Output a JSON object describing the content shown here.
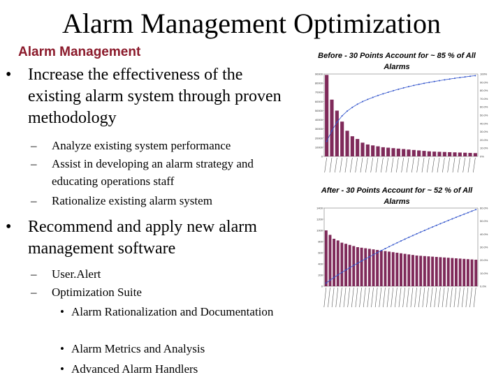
{
  "slide": {
    "title": "Alarm Management Optimization",
    "subheading": "Alarm Management"
  },
  "bullets": {
    "b1": "Increase the effectiveness of the existing alarm system through proven methodology",
    "b1_sub1": "Analyze existing system performance",
    "b1_sub2": "Assist in developing an alarm strategy and educating operations staff",
    "b1_sub3": "Rationalize existing alarm system",
    "b2": "Recommend and apply new alarm management software",
    "b2_sub1": "User.Alert",
    "b2_sub2": "Optimization Suite",
    "b2_sub2_1": "Alarm Rationalization and Documentation",
    "b2_sub2_2": "Alarm Metrics and Analysis",
    "b2_sub2_3": "Advanced Alarm Handlers",
    "bullet_l1": "•",
    "bullet_l2": "–",
    "bullet_l3": "•"
  },
  "captions": {
    "before": "Before - 30 Points Account for ~ 85 % of All Alarms",
    "after": "After - 30 Points Account for ~ 52 % of All Alarms"
  },
  "colors": {
    "bar": "#7f2a5a",
    "line": "#3355cc",
    "subhead": "#8b1a2b"
  },
  "chart_data": [
    {
      "type": "bar",
      "x_tick_labels_legible": false,
      "y_tick_labels": [
        "0",
        "10000",
        "20000",
        "30000",
        "40000",
        "50000",
        "60000",
        "70000",
        "80000",
        "90000"
      ],
      "y2_tick_labels": [
        "0%",
        "10.0%",
        "20.0%",
        "30.0%",
        "40.0%",
        "50.0%",
        "60.0%",
        "70.0%",
        "80.0%",
        "90.0%",
        "100%"
      ],
      "values": [
        89000,
        62000,
        50000,
        38000,
        28000,
        22000,
        19000,
        15000,
        13000,
        12000,
        11000,
        10000,
        9500,
        9000,
        8500,
        8000,
        7500,
        7000,
        6500,
        6000,
        5500,
        5200,
        5000,
        4800,
        4600,
        4400,
        4200,
        4000,
        3800,
        3600
      ],
      "cumulative_line": true,
      "ylim": [
        0,
        90000
      ]
    },
    {
      "type": "bar",
      "x_tick_labels_legible": false,
      "y_tick_labels": [
        "0",
        "200",
        "400",
        "600",
        "800",
        "1000",
        "1200",
        "1400"
      ],
      "y2_tick_labels": [
        "0.0%",
        "10.0%",
        "20.0%",
        "30.0%",
        "40.0%",
        "50.0%",
        "60.0%"
      ],
      "values": [
        1000,
        920,
        850,
        820,
        780,
        760,
        740,
        720,
        700,
        690,
        680,
        670,
        660,
        650,
        640,
        630,
        620,
        610,
        600,
        590,
        580,
        570,
        560,
        550,
        545,
        540,
        535,
        530,
        525,
        520,
        515,
        510,
        505,
        500,
        495,
        490,
        485,
        480,
        475
      ],
      "cumulative_line": true,
      "ylim": [
        0,
        1400
      ]
    }
  ]
}
